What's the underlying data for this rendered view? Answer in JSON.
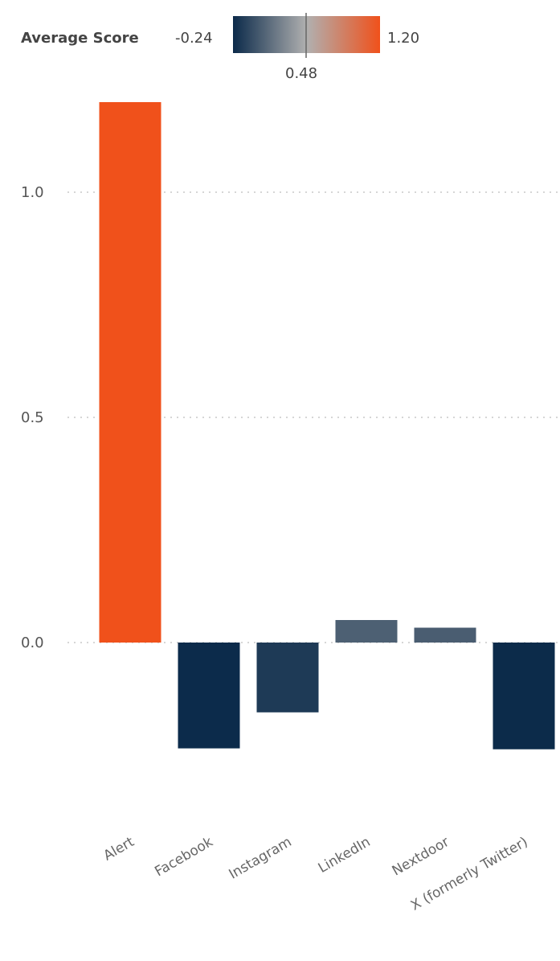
{
  "legend": {
    "title": "Average Score",
    "min_label": "-0.24",
    "mid_label": "0.48",
    "max_label": "1.20",
    "min_color": "#0B2A4A",
    "mid_color": "#B0B0B0",
    "max_color": "#F0511B"
  },
  "chart_data": {
    "type": "bar",
    "title": "",
    "xlabel": "",
    "ylabel": "",
    "categories": [
      "Alert",
      "Facebook",
      "Instagram",
      "LinkedIn",
      "Nextdoor",
      "X (formerly Twitter)"
    ],
    "values": [
      1.2,
      -0.235,
      -0.155,
      0.05,
      0.033,
      -0.237
    ],
    "ylim": [
      -0.24,
      1.2
    ],
    "yticks": [
      0.0,
      0.5,
      1.0
    ],
    "ytick_labels": [
      "0.0",
      "0.5",
      "1.0"
    ],
    "grid": true,
    "color_scale": {
      "min": -0.24,
      "mid": 0.48,
      "max": 1.2
    },
    "legend": "top"
  }
}
